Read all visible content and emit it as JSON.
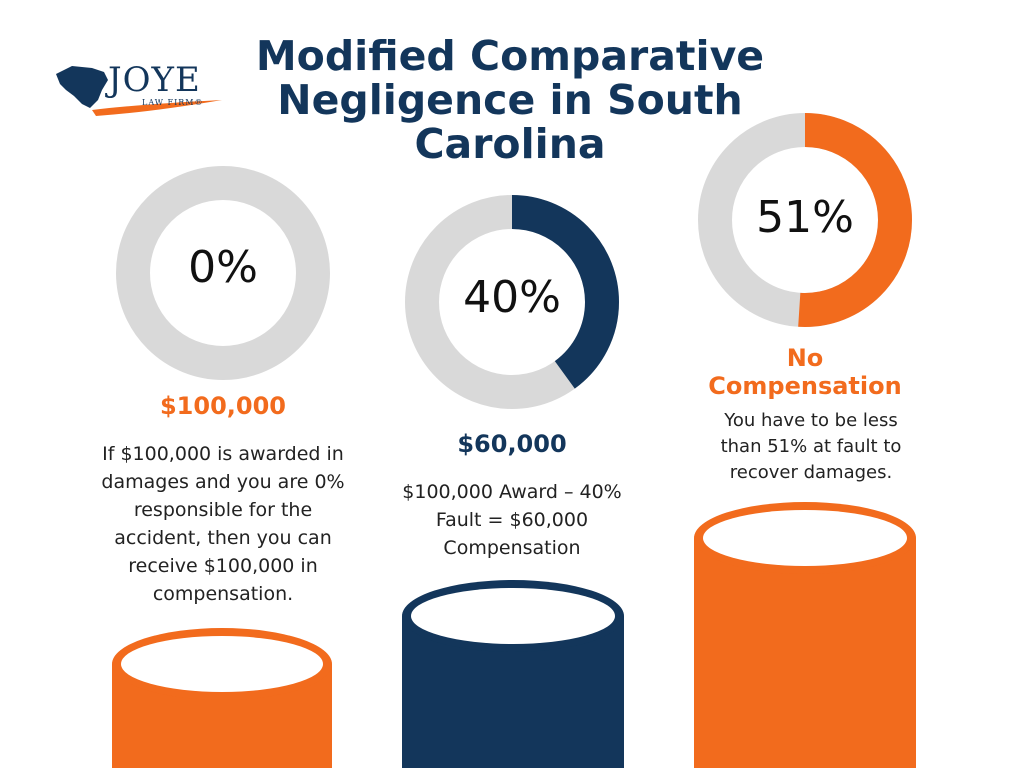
{
  "title": "Modified Comparative Negligence in South Carolina",
  "logo": {
    "name": "JOYE",
    "subtitle": "LAW FIRM®"
  },
  "colors": {
    "navy": "#13365b",
    "orange": "#f26b1d",
    "gray": "#d9d9d9"
  },
  "columns": [
    {
      "percent_label": "0%",
      "fault_fraction": 0.0,
      "amount": "$100,000",
      "description": "If $100,000 is awarded in damages and you are 0% responsible for the accident, then you can receive $100,000 in compensation.",
      "color": "#f26b1d"
    },
    {
      "percent_label": "40%",
      "fault_fraction": 0.4,
      "amount": "$60,000",
      "description": "$100,000 Award – 40% Fault = $60,000 Compensation",
      "color": "#13365b"
    },
    {
      "percent_label": "51%",
      "fault_fraction": 0.51,
      "amount": "No Compensation",
      "description": "You have to be less than 51% at fault to recover damages.",
      "color": "#f26b1d"
    }
  ]
}
